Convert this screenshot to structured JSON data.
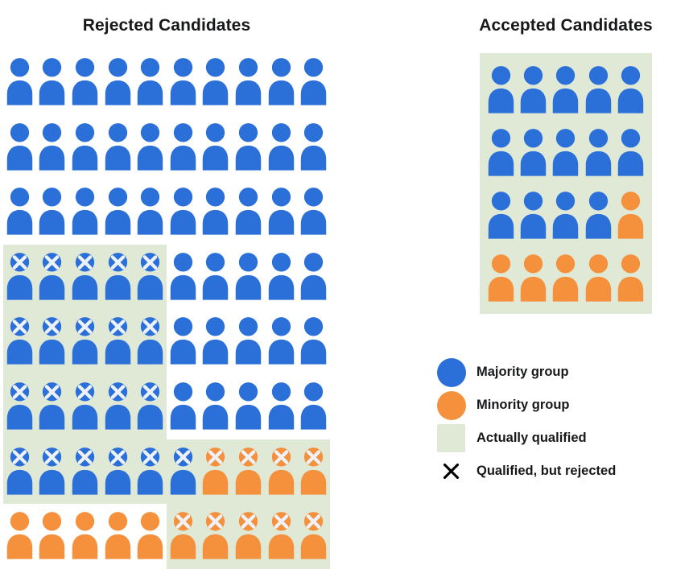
{
  "rejected": {
    "title": "Rejected Candidates",
    "columns": 10,
    "rows": [
      "bbbbbbbbbb",
      "bbbbbbbbbb",
      "bbbbbbbbbb",
      "BBBBBbbbbb",
      "BBBBBbbbbb",
      "BBBBBbbbbb",
      "BBBBBBOOOO",
      "oooooOOOOO"
    ]
  },
  "accepted": {
    "title": "Accepted Candidates",
    "columns": 5,
    "rows": [
      "bbbbb",
      "bbbbb",
      "bbbbo",
      "ooooo"
    ]
  },
  "cell_codes": {
    "b": "majority group candidate",
    "o": "minority group candidate",
    "B": "majority group candidate, qualified but rejected",
    "O": "minority group candidate, qualified but rejected"
  },
  "counts": {
    "rejected_total": 80,
    "rejected_majority": 66,
    "rejected_minority": 14,
    "rejected_qualified": 30,
    "accepted_total": 20,
    "accepted_majority": 14,
    "accepted_minority": 6
  },
  "legend": {
    "items": [
      {
        "swatch": "majority-circle",
        "label": "Majority group"
      },
      {
        "swatch": "minority-circle",
        "label": "Minority group"
      },
      {
        "swatch": "qualified-square",
        "label": "Actually qualified"
      },
      {
        "swatch": "x-mark",
        "label": "Qualified, but rejected"
      }
    ]
  },
  "colors": {
    "page_bg": "#ffffff",
    "majority": "#2b6fd8",
    "minority": "#f5913d",
    "qualified": "#dfe9d6",
    "x_mark_on_figure": "#edf1f8",
    "x_mark_legend": "#000000",
    "text": "#17181a"
  }
}
